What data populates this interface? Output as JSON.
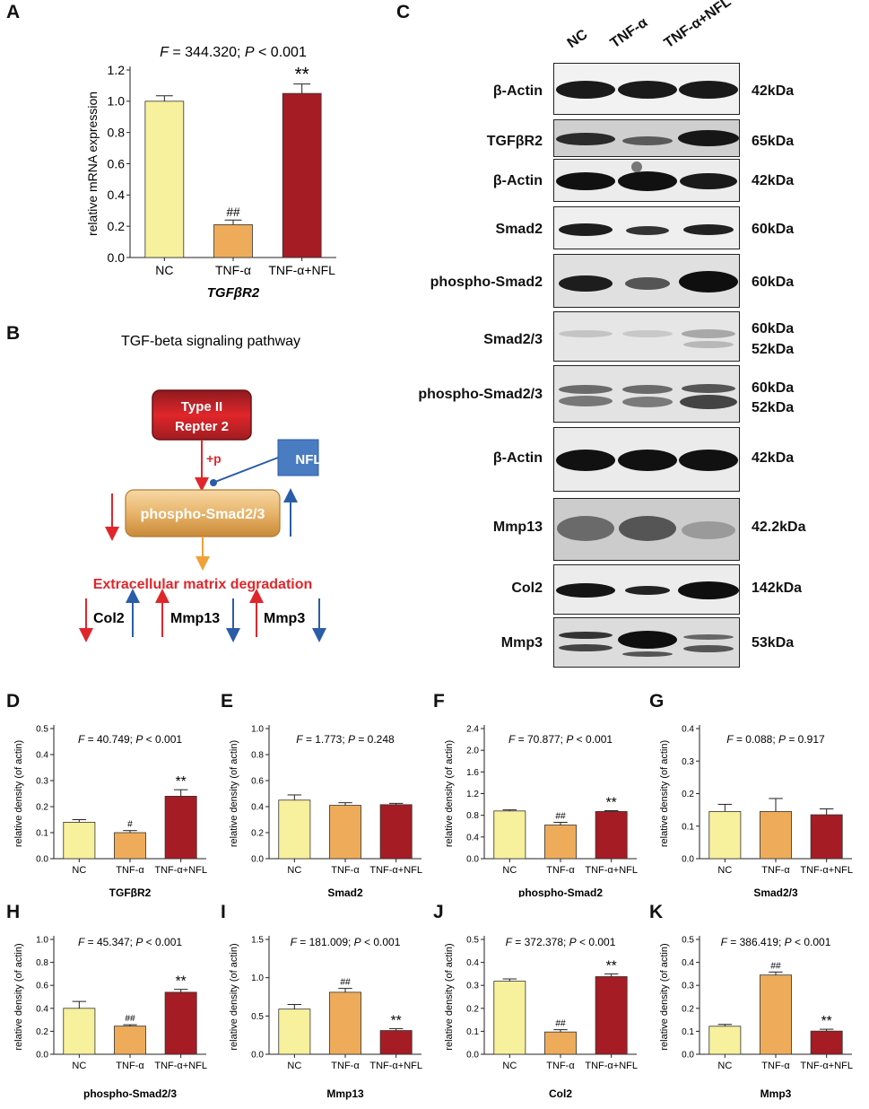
{
  "panel_letters": [
    "A",
    "B",
    "C",
    "D",
    "E",
    "F",
    "G",
    "H",
    "I",
    "J",
    "K"
  ],
  "panel_a": {
    "stat": "F = 344.320; P < 0.001",
    "ylabel": "relative mRNA expression",
    "xtitle": "TGFβR2",
    "yticks": [
      "0.0",
      "0.2",
      "0.4",
      "0.6",
      "0.8",
      "1.0",
      "1.2"
    ]
  },
  "chart_data": [
    {
      "id": "A",
      "type": "bar",
      "categories": [
        "NC",
        "TNF-α",
        "TNF-α+NFL"
      ],
      "values": [
        1.0,
        0.21,
        1.05
      ],
      "errors": [
        0.035,
        0.03,
        0.06
      ],
      "marks": [
        "",
        "##",
        "**"
      ],
      "title": "F = 344.320; P < 0.001",
      "xlabel": "TGFβR2",
      "ylabel": "relative mRNA expression",
      "ylim": [
        0,
        1.2
      ]
    },
    {
      "id": "D",
      "type": "bar",
      "categories": [
        "NC",
        "TNF-α",
        "TNF-α+NFL"
      ],
      "values": [
        0.14,
        0.1,
        0.24
      ],
      "errors": [
        0.01,
        0.008,
        0.025
      ],
      "marks": [
        "",
        "#",
        "**"
      ],
      "title": "F = 40.749; P < 0.001",
      "xlabel": "TGFβR2",
      "ylabel": "relative density (of actin)",
      "ylim": [
        0,
        0.5
      ]
    },
    {
      "id": "E",
      "type": "bar",
      "categories": [
        "NC",
        "TNF-α",
        "TNF-α+NFL"
      ],
      "values": [
        0.45,
        0.41,
        0.415
      ],
      "errors": [
        0.04,
        0.02,
        0.01
      ],
      "marks": [
        "",
        "",
        ""
      ],
      "title": "F = 1.773; P = 0.248",
      "xlabel": "Smad2",
      "ylabel": "relative density (of actin)",
      "ylim": [
        0,
        1.0
      ]
    },
    {
      "id": "F",
      "type": "bar",
      "categories": [
        "NC",
        "TNF-α",
        "TNF-α+NFL"
      ],
      "values": [
        0.88,
        0.62,
        0.87
      ],
      "errors": [
        0.02,
        0.05,
        0.015
      ],
      "marks": [
        "",
        "##",
        "**"
      ],
      "title": "F = 70.877; P < 0.001",
      "xlabel": "phospho-Smad2",
      "ylabel": "relative density (of actin)",
      "ylim": [
        0,
        2.4
      ]
    },
    {
      "id": "G",
      "type": "bar",
      "categories": [
        "NC",
        "TNF-α",
        "TNF-α+NFL"
      ],
      "values": [
        0.145,
        0.145,
        0.135
      ],
      "errors": [
        0.022,
        0.04,
        0.018
      ],
      "marks": [
        "",
        "",
        ""
      ],
      "title": "F = 0.088; P = 0.917",
      "xlabel": "Smad2/3",
      "ylabel": "relative density (of actin)",
      "ylim": [
        0,
        0.4
      ]
    },
    {
      "id": "H",
      "type": "bar",
      "categories": [
        "NC",
        "TNF-α",
        "TNF-α+NFL"
      ],
      "values": [
        0.4,
        0.245,
        0.54
      ],
      "errors": [
        0.06,
        0.012,
        0.025
      ],
      "marks": [
        "",
        "##",
        "**"
      ],
      "title": "F = 45.347; P < 0.001",
      "xlabel": "phospho-Smad2/3",
      "ylabel": "relative density (of actin)",
      "ylim": [
        0,
        1.0
      ]
    },
    {
      "id": "I",
      "type": "bar",
      "categories": [
        "NC",
        "TNF-α",
        "TNF-α+NFL"
      ],
      "values": [
        0.59,
        0.81,
        0.31
      ],
      "errors": [
        0.06,
        0.05,
        0.025
      ],
      "marks": [
        "",
        "##",
        "**"
      ],
      "title": "F = 181.009; P < 0.001",
      "xlabel": "Mmp13",
      "ylabel": "relative density (of actin)",
      "ylim": [
        0,
        1.5
      ]
    },
    {
      "id": "J",
      "type": "bar",
      "categories": [
        "NC",
        "TNF-α",
        "TNF-α+NFL"
      ],
      "values": [
        0.318,
        0.097,
        0.338
      ],
      "errors": [
        0.01,
        0.01,
        0.012
      ],
      "marks": [
        "",
        "##",
        "**"
      ],
      "title": "F = 372.378; P < 0.001",
      "xlabel": "Col2",
      "ylabel": "relative density (of actin)",
      "ylim": [
        0,
        0.5
      ]
    },
    {
      "id": "K",
      "type": "bar",
      "categories": [
        "NC",
        "TNF-α",
        "TNF-α+NFL"
      ],
      "values": [
        0.122,
        0.345,
        0.101
      ],
      "errors": [
        0.008,
        0.013,
        0.008
      ],
      "marks": [
        "",
        "##",
        "**"
      ],
      "title": "F = 386.419; P < 0.001",
      "xlabel": "Mmp3",
      "ylabel": "relative density (of actin)",
      "ylim": [
        0,
        0.5
      ]
    }
  ],
  "small_ticks": {
    "D": [
      "0.0",
      "0.1",
      "0.2",
      "0.3",
      "0.4",
      "0.5"
    ],
    "E": [
      "0.0",
      "0.2",
      "0.4",
      "0.6",
      "0.8",
      "1.0"
    ],
    "F": [
      "0.0",
      "0.4",
      "0.8",
      "1.2",
      "1.6",
      "2.0",
      "2.4"
    ],
    "G": [
      "0.0",
      "0.1",
      "0.2",
      "0.3",
      "0.4"
    ],
    "H": [
      "0.0",
      "0.2",
      "0.4",
      "0.6",
      "0.8",
      "1.0"
    ],
    "I": [
      "0.0",
      "0.5",
      "1.0",
      "1.5"
    ],
    "J": [
      "0.0",
      "0.1",
      "0.2",
      "0.3",
      "0.4",
      "0.5"
    ],
    "K": [
      "0.0",
      "0.1",
      "0.2",
      "0.3",
      "0.4",
      "0.5"
    ]
  },
  "bar_colors": [
    "#f7f09c",
    "#eeac5a",
    "#a51c24"
  ],
  "pathway": {
    "title": "TGF-beta signaling pathway",
    "receptor_line1": "Type II",
    "receptor_line2": "Repter 2",
    "plus_p": "+p",
    "nfl": "NFL",
    "smad": "phospho-Smad2/3",
    "ecm": "Extracellular matrix degradation",
    "col2": "Col2",
    "mmp13": "Mmp13",
    "mmp3": "Mmp3",
    "colors": {
      "red": "#e0262b",
      "blue": "#2a5da8",
      "orange": "#f0a13a"
    }
  },
  "blot": {
    "lanes": [
      "NC",
      "TNF-α",
      "TNF-α+NFL"
    ],
    "rows": [
      {
        "label": "β-Actin",
        "kda": "42kDa"
      },
      {
        "label": "TGFβR2",
        "kda": "65kDa"
      },
      {
        "label": "β-Actin",
        "kda": "42kDa"
      },
      {
        "label": "Smad2",
        "kda": "60kDa"
      },
      {
        "label": "phospho-Smad2",
        "kda": "60kDa"
      },
      {
        "label": "Smad2/3",
        "kda": "60kDa",
        "kda2": "52kDa"
      },
      {
        "label": "phospho-Smad2/3",
        "kda": "60kDa",
        "kda2": "52kDa"
      },
      {
        "label": "β-Actin",
        "kda": "42kDa"
      },
      {
        "label": "Mmp13",
        "kda": "42.2kDa"
      },
      {
        "label": "Col2",
        "kda": "142kDa"
      },
      {
        "label": "Mmp3",
        "kda": "53kDa"
      }
    ]
  }
}
